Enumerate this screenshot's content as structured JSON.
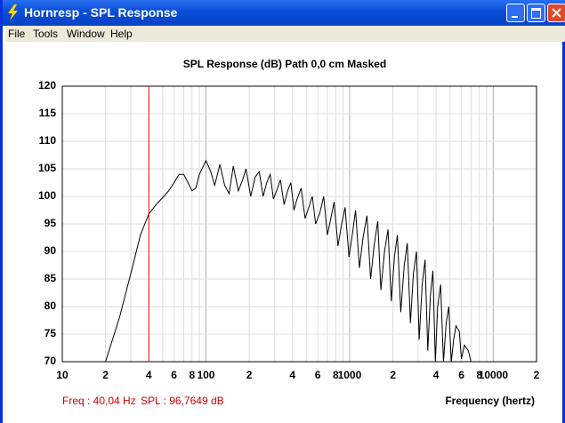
{
  "window": {
    "title": "Hornresp - SPL Response",
    "menu": [
      "File",
      "Tools",
      "Window",
      "Help"
    ]
  },
  "chart_data": {
    "type": "line",
    "title": "SPL Response (dB)   Path 0,0 cm   Masked",
    "xlabel": "Frequency (hertz)",
    "log_x": true,
    "grid": true,
    "color": "#000000",
    "xlim": [
      10,
      20000
    ],
    "ylim": [
      70,
      120
    ],
    "yticks": [
      70,
      75,
      80,
      85,
      90,
      95,
      100,
      105,
      110,
      115,
      120
    ],
    "xticks": [
      10,
      {
        "value": 20,
        "label": "2"
      },
      {
        "value": 30,
        "label": null
      },
      {
        "value": 40,
        "label": "4"
      },
      {
        "value": 50,
        "label": null
      },
      {
        "value": 60,
        "label": "6"
      },
      {
        "value": 70,
        "label": null
      },
      {
        "value": 80,
        "label": "8"
      },
      {
        "value": 90,
        "label": null
      },
      100,
      {
        "value": 200,
        "label": "2"
      },
      {
        "value": 300,
        "label": null
      },
      {
        "value": 400,
        "label": "4"
      },
      {
        "value": 500,
        "label": null
      },
      {
        "value": 600,
        "label": "6"
      },
      {
        "value": 700,
        "label": null
      },
      {
        "value": 800,
        "label": "8"
      },
      {
        "value": 900,
        "label": null
      },
      1000,
      {
        "value": 2000,
        "label": "2"
      },
      {
        "value": 3000,
        "label": null
      },
      {
        "value": 4000,
        "label": "4"
      },
      {
        "value": 5000,
        "label": null
      },
      {
        "value": 6000,
        "label": "6"
      },
      {
        "value": 7000,
        "label": null
      },
      {
        "value": 8000,
        "label": "8"
      },
      {
        "value": 9000,
        "label": null
      },
      10000,
      {
        "value": 20000,
        "label": "2"
      }
    ],
    "x": [
      20,
      25,
      30,
      35,
      40,
      45,
      50,
      55,
      60,
      65,
      70,
      75,
      80,
      85,
      90,
      100,
      108,
      115,
      125,
      135,
      145,
      155,
      168,
      180,
      190,
      205,
      220,
      235,
      250,
      265,
      280,
      295,
      315,
      330,
      350,
      370,
      390,
      410,
      430,
      460,
      490,
      520,
      550,
      580,
      620,
      660,
      700,
      740,
      780,
      830,
      880,
      930,
      990,
      1050,
      1100,
      1170,
      1240,
      1320,
      1400,
      1480,
      1570,
      1650,
      1750,
      1850,
      1950,
      2050,
      2150,
      2270,
      2400,
      2520,
      2650,
      2780,
      2920,
      3050,
      3200,
      3350,
      3500,
      3650,
      3800,
      3950,
      4100,
      4300,
      4500,
      4700,
      4900,
      5100,
      5300,
      5500,
      5800,
      6000,
      6300,
      6700,
      7000
    ],
    "values": [
      70,
      78,
      86,
      93,
      96.8,
      98.5,
      99.8,
      101,
      102.5,
      104,
      104,
      102.5,
      101,
      101.5,
      104,
      106.5,
      104.5,
      102,
      105.8,
      102,
      100.5,
      105.5,
      101,
      103,
      105,
      100,
      103.5,
      104.5,
      100,
      102.5,
      104,
      99.5,
      101.5,
      103,
      98.5,
      101,
      102.5,
      97.5,
      99.5,
      101.5,
      96,
      98,
      100,
      95,
      97,
      100,
      93,
      96,
      99,
      91,
      95,
      98,
      89,
      93.5,
      97.5,
      87,
      92.5,
      96.5,
      85,
      91,
      95.5,
      83,
      90,
      94,
      81,
      89,
      93,
      79,
      87.5,
      91.5,
      77,
      86,
      90,
      74,
      84,
      88.5,
      72,
      82,
      86.5,
      70,
      80,
      84,
      70,
      77,
      80,
      70,
      74,
      76.5,
      75.5,
      70.5,
      73,
      72,
      70
    ],
    "cursor": {
      "x": 40.04,
      "color": "#ff0000",
      "freq_label": "Freq : 40,04 Hz",
      "spl_label": "SPL : 96,7649 dB"
    }
  }
}
